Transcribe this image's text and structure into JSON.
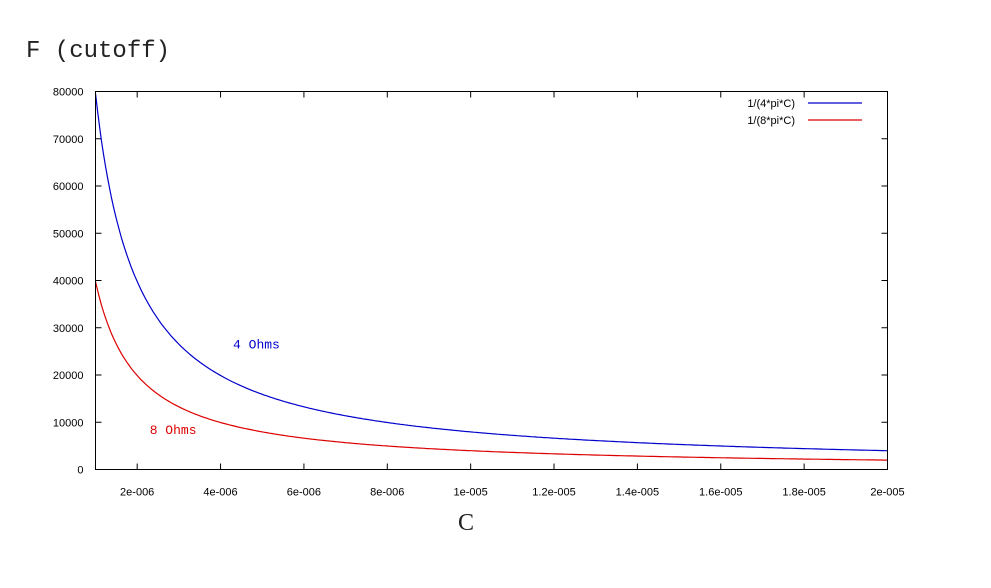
{
  "chart_data": {
    "type": "line",
    "title": "",
    "ylabel": "F (cutoff)",
    "xlabel": "C",
    "xlim": [
      1e-06,
      2e-05
    ],
    "ylim": [
      0,
      80000
    ],
    "grid": false,
    "legend_position": "top-right",
    "x_ticks": [
      {
        "value": 2e-06,
        "label": "2e-006"
      },
      {
        "value": 4e-06,
        "label": "4e-006"
      },
      {
        "value": 6e-06,
        "label": "6e-006"
      },
      {
        "value": 8e-06,
        "label": "8e-006"
      },
      {
        "value": 1e-05,
        "label": "1e-005"
      },
      {
        "value": 1.2e-05,
        "label": "1.2e-005"
      },
      {
        "value": 1.4e-05,
        "label": "1.4e-005"
      },
      {
        "value": 1.6e-05,
        "label": "1.6e-005"
      },
      {
        "value": 1.8e-05,
        "label": "1.8e-005"
      },
      {
        "value": 2e-05,
        "label": "2e-005"
      }
    ],
    "y_ticks": [
      {
        "value": 0,
        "label": "0"
      },
      {
        "value": 10000,
        "label": "10000"
      },
      {
        "value": 20000,
        "label": "20000"
      },
      {
        "value": 30000,
        "label": "30000"
      },
      {
        "value": 40000,
        "label": "40000"
      },
      {
        "value": 50000,
        "label": "50000"
      },
      {
        "value": 60000,
        "label": "60000"
      },
      {
        "value": 70000,
        "label": "70000"
      },
      {
        "value": 80000,
        "label": "80000"
      }
    ],
    "series": [
      {
        "name": "1/(4*pi*C)",
        "color": "#0000cc",
        "x": [
          1e-06,
          2e-06,
          3e-06,
          4e-06,
          5e-06,
          6e-06,
          8e-06,
          1e-05,
          1.2e-05,
          1.4e-05,
          1.6e-05,
          1.8e-05,
          2e-05
        ],
        "values": [
          79577,
          39789,
          26526,
          19894,
          15915,
          13263,
          9947,
          7958,
          6631,
          5684,
          4974,
          4421,
          3979
        ]
      },
      {
        "name": "1/(8*pi*C)",
        "color": "#dd0000",
        "x": [
          1e-06,
          2e-06,
          3e-06,
          4e-06,
          5e-06,
          6e-06,
          8e-06,
          1e-05,
          1.2e-05,
          1.4e-05,
          1.6e-05,
          1.8e-05,
          2e-05
        ],
        "values": [
          39789,
          19894,
          13263,
          9947,
          7958,
          6631,
          4974,
          3979,
          3316,
          2842,
          2487,
          2210,
          1989
        ]
      }
    ],
    "annotations": [
      {
        "text": "4 Ohms",
        "x": 4.3e-06,
        "y": 26500,
        "color": "#0000cc"
      },
      {
        "text": "8 Ohms",
        "x": 2.3e-06,
        "y": 8400,
        "color": "#dd0000"
      }
    ]
  },
  "labels": {
    "y_title": "F (cutoff)",
    "x_title": "C"
  }
}
